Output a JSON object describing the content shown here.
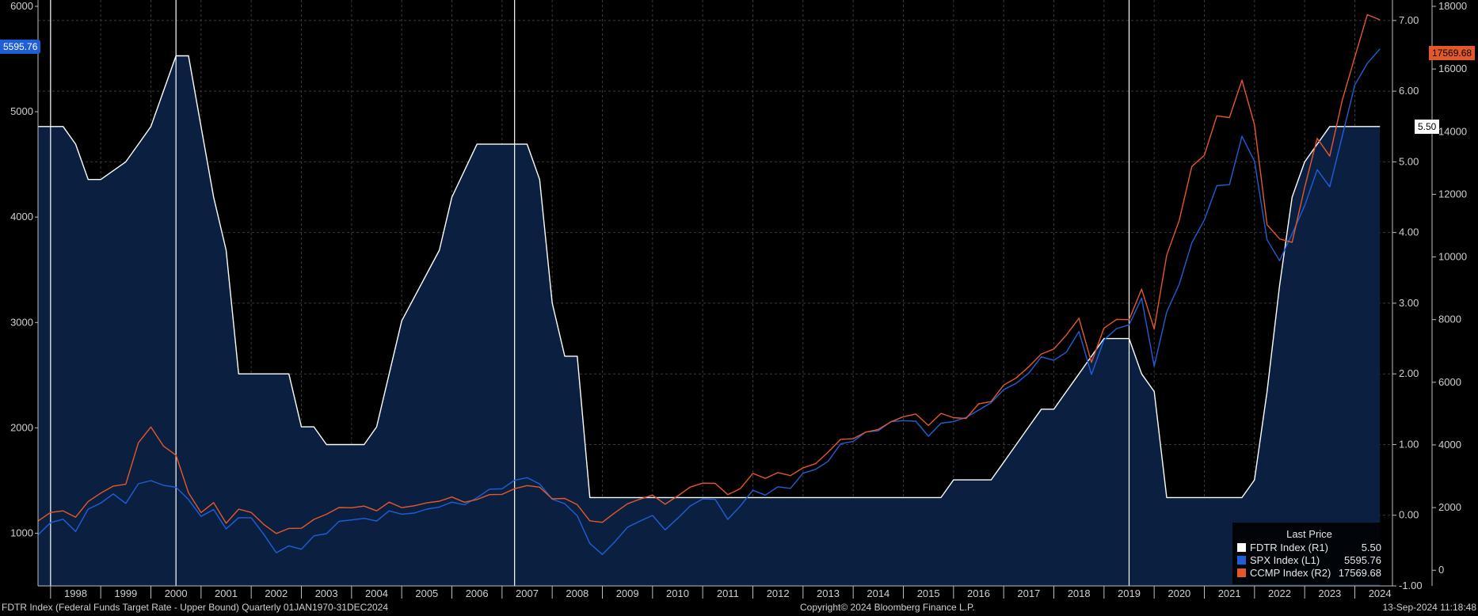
{
  "chart_data": {
    "type": "area",
    "x_start": 1997.75,
    "x_end": 2024.75,
    "year_labels": [
      "1998",
      "1999",
      "2000",
      "2001",
      "2002",
      "2003",
      "2004",
      "2005",
      "2006",
      "2007",
      "2008",
      "2009",
      "2010",
      "2011",
      "2012",
      "2013",
      "2014",
      "2015",
      "2016",
      "2017",
      "2018",
      "2019",
      "2020",
      "2021",
      "2022",
      "2023",
      "2024"
    ],
    "left_axis": {
      "ticks": [
        1000,
        2000,
        3000,
        4000,
        5000,
        6000
      ],
      "range": [
        500,
        6000
      ]
    },
    "right_axis_rate": {
      "ticks": [
        "-1.00",
        "0.00",
        "1.00",
        "2.00",
        "3.00",
        "4.00",
        "5.00",
        "6.00",
        "7.00"
      ],
      "range": [
        -1.0,
        7.2
      ]
    },
    "right_axis_index": {
      "ticks": [
        0,
        2000,
        4000,
        6000,
        8000,
        10000,
        12000,
        14000,
        16000,
        18000
      ],
      "range": [
        -500,
        18000
      ]
    },
    "recession_years": [
      1998.0,
      2000.5,
      2007.25,
      2019.5
    ],
    "series": [
      {
        "name": "FDTR Index  (R1)",
        "axis": "rate",
        "color": "#ffffff",
        "fill": "#0b2040",
        "points": [
          [
            1997.75,
            5.5
          ],
          [
            1998.25,
            5.5
          ],
          [
            1998.5,
            5.25
          ],
          [
            1998.75,
            4.75
          ],
          [
            1999.0,
            4.75
          ],
          [
            1999.5,
            5.0
          ],
          [
            1999.75,
            5.25
          ],
          [
            2000.0,
            5.5
          ],
          [
            2000.5,
            6.5
          ],
          [
            2000.75,
            6.5
          ],
          [
            2001.0,
            5.5
          ],
          [
            2001.25,
            4.5
          ],
          [
            2001.5,
            3.75
          ],
          [
            2001.75,
            2.0
          ],
          [
            2002.75,
            2.0
          ],
          [
            2003.0,
            1.25
          ],
          [
            2003.25,
            1.25
          ],
          [
            2003.5,
            1.0
          ],
          [
            2004.25,
            1.0
          ],
          [
            2004.5,
            1.25
          ],
          [
            2005.0,
            2.75
          ],
          [
            2005.75,
            3.75
          ],
          [
            2006.0,
            4.5
          ],
          [
            2006.5,
            5.25
          ],
          [
            2007.5,
            5.25
          ],
          [
            2007.75,
            4.75
          ],
          [
            2008.0,
            3.0
          ],
          [
            2008.25,
            2.25
          ],
          [
            2008.5,
            2.25
          ],
          [
            2008.75,
            0.25
          ],
          [
            2015.75,
            0.25
          ],
          [
            2016.0,
            0.5
          ],
          [
            2016.75,
            0.5
          ],
          [
            2017.0,
            0.75
          ],
          [
            2017.25,
            1.0
          ],
          [
            2017.5,
            1.25
          ],
          [
            2017.75,
            1.5
          ],
          [
            2018.0,
            1.5
          ],
          [
            2018.25,
            1.75
          ],
          [
            2018.5,
            2.0
          ],
          [
            2018.75,
            2.25
          ],
          [
            2019.0,
            2.5
          ],
          [
            2019.5,
            2.5
          ],
          [
            2019.75,
            2.0
          ],
          [
            2020.0,
            1.75
          ],
          [
            2020.25,
            0.25
          ],
          [
            2021.75,
            0.25
          ],
          [
            2022.0,
            0.5
          ],
          [
            2022.25,
            1.75
          ],
          [
            2022.5,
            3.25
          ],
          [
            2022.75,
            4.5
          ],
          [
            2023.0,
            5.0
          ],
          [
            2023.25,
            5.25
          ],
          [
            2023.5,
            5.5
          ],
          [
            2024.5,
            5.5
          ]
        ]
      },
      {
        "name": "SPX Index  (L1)",
        "axis": "left",
        "color": "#1e5fd8",
        "points": [
          [
            1997.75,
            985
          ],
          [
            1998.0,
            1100
          ],
          [
            1998.25,
            1133
          ],
          [
            1998.5,
            1017
          ],
          [
            1998.75,
            1229
          ],
          [
            1999.0,
            1286
          ],
          [
            1999.25,
            1373
          ],
          [
            1999.5,
            1283
          ],
          [
            1999.75,
            1469
          ],
          [
            2000.0,
            1499
          ],
          [
            2000.25,
            1455
          ],
          [
            2000.5,
            1436
          ],
          [
            2000.75,
            1320
          ],
          [
            2001.0,
            1160
          ],
          [
            2001.25,
            1224
          ],
          [
            2001.5,
            1041
          ],
          [
            2001.75,
            1148
          ],
          [
            2002.0,
            1147
          ],
          [
            2002.25,
            990
          ],
          [
            2002.5,
            815
          ],
          [
            2002.75,
            880
          ],
          [
            2003.0,
            848
          ],
          [
            2003.25,
            975
          ],
          [
            2003.5,
            996
          ],
          [
            2003.75,
            1112
          ],
          [
            2004.0,
            1126
          ],
          [
            2004.25,
            1141
          ],
          [
            2004.5,
            1115
          ],
          [
            2004.75,
            1212
          ],
          [
            2005.0,
            1181
          ],
          [
            2005.25,
            1191
          ],
          [
            2005.5,
            1229
          ],
          [
            2005.75,
            1248
          ],
          [
            2006.0,
            1295
          ],
          [
            2006.25,
            1270
          ],
          [
            2006.5,
            1336
          ],
          [
            2006.75,
            1418
          ],
          [
            2007.0,
            1421
          ],
          [
            2007.25,
            1503
          ],
          [
            2007.5,
            1527
          ],
          [
            2007.75,
            1468
          ],
          [
            2008.0,
            1323
          ],
          [
            2008.25,
            1280
          ],
          [
            2008.5,
            1166
          ],
          [
            2008.75,
            903
          ],
          [
            2009.0,
            798
          ],
          [
            2009.25,
            919
          ],
          [
            2009.5,
            1057
          ],
          [
            2009.75,
            1115
          ],
          [
            2010.0,
            1169
          ],
          [
            2010.25,
            1031
          ],
          [
            2010.5,
            1141
          ],
          [
            2010.75,
            1258
          ],
          [
            2011.0,
            1326
          ],
          [
            2011.25,
            1321
          ],
          [
            2011.5,
            1131
          ],
          [
            2011.75,
            1258
          ],
          [
            2012.0,
            1408
          ],
          [
            2012.25,
            1362
          ],
          [
            2012.5,
            1441
          ],
          [
            2012.75,
            1426
          ],
          [
            2013.0,
            1569
          ],
          [
            2013.25,
            1606
          ],
          [
            2013.5,
            1682
          ],
          [
            2013.75,
            1848
          ],
          [
            2014.0,
            1872
          ],
          [
            2014.25,
            1960
          ],
          [
            2014.5,
            1972
          ],
          [
            2014.75,
            2059
          ],
          [
            2015.0,
            2068
          ],
          [
            2015.25,
            2063
          ],
          [
            2015.5,
            1920
          ],
          [
            2015.75,
            2044
          ],
          [
            2016.0,
            2060
          ],
          [
            2016.25,
            2099
          ],
          [
            2016.5,
            2168
          ],
          [
            2016.75,
            2239
          ],
          [
            2017.0,
            2363
          ],
          [
            2017.25,
            2423
          ],
          [
            2017.5,
            2519
          ],
          [
            2017.75,
            2674
          ],
          [
            2018.0,
            2641
          ],
          [
            2018.25,
            2718
          ],
          [
            2018.5,
            2914
          ],
          [
            2018.75,
            2507
          ],
          [
            2019.0,
            2834
          ],
          [
            2019.25,
            2942
          ],
          [
            2019.5,
            2977
          ],
          [
            2019.75,
            3231
          ],
          [
            2020.0,
            2585
          ],
          [
            2020.25,
            3100
          ],
          [
            2020.5,
            3363
          ],
          [
            2020.75,
            3756
          ],
          [
            2021.0,
            3973
          ],
          [
            2021.25,
            4298
          ],
          [
            2021.5,
            4308
          ],
          [
            2021.75,
            4766
          ],
          [
            2022.0,
            4530
          ],
          [
            2022.25,
            3785
          ],
          [
            2022.5,
            3586
          ],
          [
            2022.75,
            3840
          ],
          [
            2023.0,
            4109
          ],
          [
            2023.25,
            4450
          ],
          [
            2023.5,
            4288
          ],
          [
            2023.75,
            4770
          ],
          [
            2024.0,
            5254
          ],
          [
            2024.25,
            5460
          ],
          [
            2024.5,
            5596
          ]
        ]
      },
      {
        "name": "CCMP Index  (R2)",
        "axis": "index",
        "color": "#e3582b",
        "points": [
          [
            1997.75,
            1570
          ],
          [
            1998.0,
            1845
          ],
          [
            1998.25,
            1895
          ],
          [
            1998.5,
            1694
          ],
          [
            1998.75,
            2193
          ],
          [
            1999.0,
            2461
          ],
          [
            1999.25,
            2686
          ],
          [
            1999.5,
            2746
          ],
          [
            1999.75,
            4069
          ],
          [
            2000.0,
            4573
          ],
          [
            2000.25,
            3966
          ],
          [
            2000.5,
            3673
          ],
          [
            2000.75,
            2471
          ],
          [
            2001.0,
            1840
          ],
          [
            2001.25,
            2160
          ],
          [
            2001.5,
            1499
          ],
          [
            2001.75,
            1950
          ],
          [
            2002.0,
            1845
          ],
          [
            2002.25,
            1463
          ],
          [
            2002.5,
            1172
          ],
          [
            2002.75,
            1336
          ],
          [
            2003.0,
            1341
          ],
          [
            2003.25,
            1623
          ],
          [
            2003.5,
            1787
          ],
          [
            2003.75,
            2003
          ],
          [
            2004.0,
            1994
          ],
          [
            2004.25,
            2048
          ],
          [
            2004.5,
            1897
          ],
          [
            2004.75,
            2175
          ],
          [
            2005.0,
            1999
          ],
          [
            2005.25,
            2057
          ],
          [
            2005.5,
            2151
          ],
          [
            2005.75,
            2205
          ],
          [
            2006.0,
            2339
          ],
          [
            2006.25,
            2172
          ],
          [
            2006.5,
            2258
          ],
          [
            2006.75,
            2415
          ],
          [
            2007.0,
            2421
          ],
          [
            2007.25,
            2603
          ],
          [
            2007.5,
            2701
          ],
          [
            2007.75,
            2652
          ],
          [
            2008.0,
            2279
          ],
          [
            2008.25,
            2293
          ],
          [
            2008.5,
            2092
          ],
          [
            2008.75,
            1577
          ],
          [
            2009.0,
            1529
          ],
          [
            2009.25,
            1835
          ],
          [
            2009.5,
            2122
          ],
          [
            2009.75,
            2269
          ],
          [
            2010.0,
            2398
          ],
          [
            2010.25,
            2109
          ],
          [
            2010.5,
            2369
          ],
          [
            2010.75,
            2653
          ],
          [
            2011.0,
            2781
          ],
          [
            2011.25,
            2774
          ],
          [
            2011.5,
            2415
          ],
          [
            2011.75,
            2605
          ],
          [
            2012.0,
            3092
          ],
          [
            2012.25,
            2935
          ],
          [
            2012.5,
            3116
          ],
          [
            2012.75,
            3020
          ],
          [
            2013.0,
            3267
          ],
          [
            2013.25,
            3403
          ],
          [
            2013.5,
            3771
          ],
          [
            2013.75,
            4177
          ],
          [
            2014.0,
            4199
          ],
          [
            2014.25,
            4408
          ],
          [
            2014.5,
            4493
          ],
          [
            2014.75,
            4736
          ],
          [
            2015.0,
            4901
          ],
          [
            2015.25,
            4987
          ],
          [
            2015.5,
            4620
          ],
          [
            2015.75,
            5007
          ],
          [
            2016.0,
            4870
          ],
          [
            2016.25,
            4843
          ],
          [
            2016.5,
            5312
          ],
          [
            2016.75,
            5383
          ],
          [
            2017.0,
            5911
          ],
          [
            2017.25,
            6140
          ],
          [
            2017.5,
            6496
          ],
          [
            2017.75,
            6903
          ],
          [
            2018.0,
            7063
          ],
          [
            2018.25,
            7510
          ],
          [
            2018.5,
            8046
          ],
          [
            2018.75,
            6635
          ],
          [
            2019.0,
            7729
          ],
          [
            2019.25,
            8006
          ],
          [
            2019.5,
            7999
          ],
          [
            2019.75,
            8973
          ],
          [
            2020.0,
            7700
          ],
          [
            2020.25,
            10058
          ],
          [
            2020.5,
            11168
          ],
          [
            2020.75,
            12888
          ],
          [
            2021.0,
            13247
          ],
          [
            2021.25,
            14504
          ],
          [
            2021.5,
            14448
          ],
          [
            2021.75,
            15645
          ],
          [
            2022.0,
            14221
          ],
          [
            2022.25,
            11029
          ],
          [
            2022.5,
            10576
          ],
          [
            2022.75,
            10466
          ],
          [
            2023.0,
            12222
          ],
          [
            2023.25,
            13788
          ],
          [
            2023.5,
            13219
          ],
          [
            2023.75,
            15011
          ],
          [
            2024.0,
            16379
          ],
          [
            2024.25,
            17733
          ],
          [
            2024.5,
            17570
          ]
        ]
      }
    ]
  },
  "price_tags": {
    "spx": "5595.76",
    "fdtr": "5.50",
    "ccmp": "17569.68"
  },
  "legend": {
    "header": "Last Price",
    "rows": [
      {
        "name": "FDTR Index  (R1)",
        "value": "5.50",
        "color": "#ffffff"
      },
      {
        "name": "SPX Index  (L1)",
        "value": "5595.76",
        "color": "#1e5fd8"
      },
      {
        "name": "CCMP Index  (R2)",
        "value": "17569.68",
        "color": "#e3582b"
      }
    ]
  },
  "footer": {
    "left": "FDTR Index (Federal Funds Target Rate - Upper Bound)  Quarterly 01JAN1970-31DEC2024",
    "center": "Copyright© 2024 Bloomberg Finance L.P.",
    "right": "13-Sep-2024 11:18:48"
  }
}
